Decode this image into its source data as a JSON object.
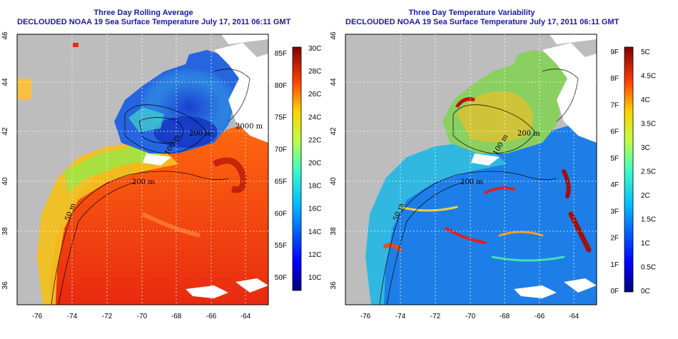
{
  "left": {
    "title_line1": "Three Day Rolling Average",
    "title_line2": "DECLOUDED NOAA 19 Sea Surface Temperature July 17, 2011 06:11 GMT",
    "colorbar_F": [
      "50F",
      "55F",
      "60F",
      "65F",
      "70F",
      "75F",
      "80F",
      "85F"
    ],
    "colorbar_C": [
      "10C",
      "12C",
      "14C",
      "16C",
      "18C",
      "20C",
      "22C",
      "24C",
      "26C",
      "28C",
      "30C"
    ]
  },
  "right": {
    "title_line1": "Three Day Temperature Variability",
    "title_line2": "DECLOUDED NOAA 19 Sea Surface Temperature July 17, 2011 06:11 GMT",
    "colorbar_F": [
      "0F",
      "1F",
      "2F",
      "3F",
      "4F",
      "5F",
      "6F",
      "7F",
      "8F",
      "9F"
    ],
    "colorbar_C": [
      "0C",
      "0.5C",
      "1C",
      "1.5C",
      "2C",
      "2.5C",
      "3C",
      "3.5C",
      "4C",
      "4.5C",
      "5C"
    ]
  },
  "axes": {
    "lon_ticks": [
      "-76",
      "-74",
      "-72",
      "-70",
      "-68",
      "-66",
      "-64"
    ],
    "lat_ticks": [
      "36",
      "38",
      "40",
      "42",
      "44",
      "46"
    ]
  },
  "contour_labels": {
    "left": [
      "200 m",
      "50 m",
      "200 m",
      "100 m",
      "2000 m"
    ],
    "right": [
      "200 m",
      "50 m",
      "200 m",
      "100 m"
    ]
  },
  "colors": {
    "title": "#1a1aa6",
    "land": "#bdbdbd",
    "cloud_mask": "#ffffff"
  }
}
